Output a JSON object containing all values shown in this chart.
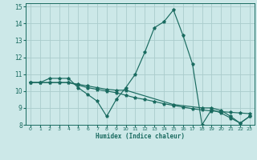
{
  "xlabel": "Humidex (Indice chaleur)",
  "bg_color": "#cce8e8",
  "line_color": "#1a6b60",
  "grid_color": "#aacccc",
  "xlim": [
    -0.5,
    23.5
  ],
  "ylim": [
    8,
    15.2
  ],
  "xticks": [
    0,
    1,
    2,
    3,
    4,
    5,
    6,
    7,
    8,
    9,
    10,
    11,
    12,
    13,
    14,
    15,
    16,
    17,
    18,
    19,
    20,
    21,
    22,
    23
  ],
  "yticks": [
    8,
    9,
    10,
    11,
    12,
    13,
    14,
    15
  ],
  "line1_x": [
    0,
    1,
    2,
    3,
    4,
    5,
    6,
    7,
    8,
    9,
    10,
    11,
    12,
    13,
    14,
    15,
    16,
    17,
    18,
    19,
    20,
    21,
    22,
    23
  ],
  "line1_y": [
    10.5,
    10.5,
    10.75,
    10.75,
    10.75,
    10.2,
    9.8,
    9.4,
    8.5,
    9.5,
    10.2,
    11.0,
    12.3,
    13.75,
    14.1,
    14.8,
    13.3,
    11.6,
    8.0,
    8.9,
    8.7,
    8.4,
    8.1,
    8.5
  ],
  "line2_x": [
    0,
    1,
    2,
    3,
    4,
    5,
    6,
    7,
    8,
    9,
    10,
    11,
    12,
    13,
    14,
    15,
    16,
    17,
    18,
    19,
    20,
    21,
    22,
    23
  ],
  "line2_y": [
    10.5,
    10.5,
    10.5,
    10.5,
    10.5,
    10.35,
    10.2,
    10.1,
    10.0,
    9.9,
    9.75,
    9.6,
    9.5,
    9.38,
    9.25,
    9.15,
    9.05,
    8.95,
    8.88,
    8.82,
    8.78,
    8.74,
    8.7,
    8.66
  ],
  "line3_x": [
    0,
    1,
    2,
    3,
    4,
    5,
    6,
    7,
    8,
    9,
    10,
    15,
    18,
    19,
    20,
    21,
    22,
    23
  ],
  "line3_y": [
    10.5,
    10.5,
    10.5,
    10.5,
    10.5,
    10.4,
    10.3,
    10.2,
    10.1,
    10.05,
    10.05,
    9.2,
    9.0,
    9.0,
    8.85,
    8.5,
    8.1,
    8.5
  ]
}
